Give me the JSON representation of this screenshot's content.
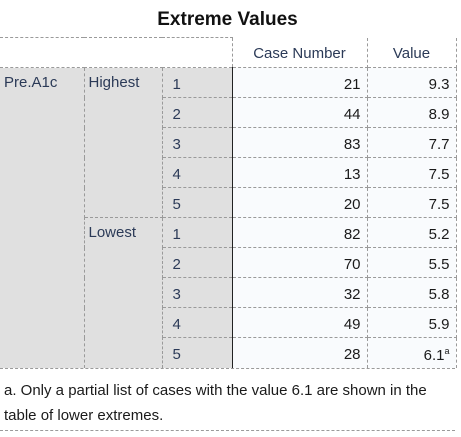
{
  "title": "Extreme Values",
  "columns": [
    "Case Number",
    "Value"
  ],
  "variable": "Pre.A1c",
  "groups": [
    {
      "label": "Highest",
      "rows": [
        {
          "rank": "1",
          "case": "21",
          "value": "9.3"
        },
        {
          "rank": "2",
          "case": "44",
          "value": "8.9"
        },
        {
          "rank": "3",
          "case": "83",
          "value": "7.7"
        },
        {
          "rank": "4",
          "case": "13",
          "value": "7.5"
        },
        {
          "rank": "5",
          "case": "20",
          "value": "7.5"
        }
      ]
    },
    {
      "label": "Lowest",
      "rows": [
        {
          "rank": "1",
          "case": "82",
          "value": "5.2"
        },
        {
          "rank": "2",
          "case": "70",
          "value": "5.5"
        },
        {
          "rank": "3",
          "case": "32",
          "value": "5.8"
        },
        {
          "rank": "4",
          "case": "49",
          "value": "5.9"
        },
        {
          "rank": "5",
          "case": "28",
          "value": "6.1",
          "sup": "a"
        }
      ]
    }
  ],
  "footnote": "a. Only a partial list of cases with the value 6.1 are shown in the table of lower extremes."
}
